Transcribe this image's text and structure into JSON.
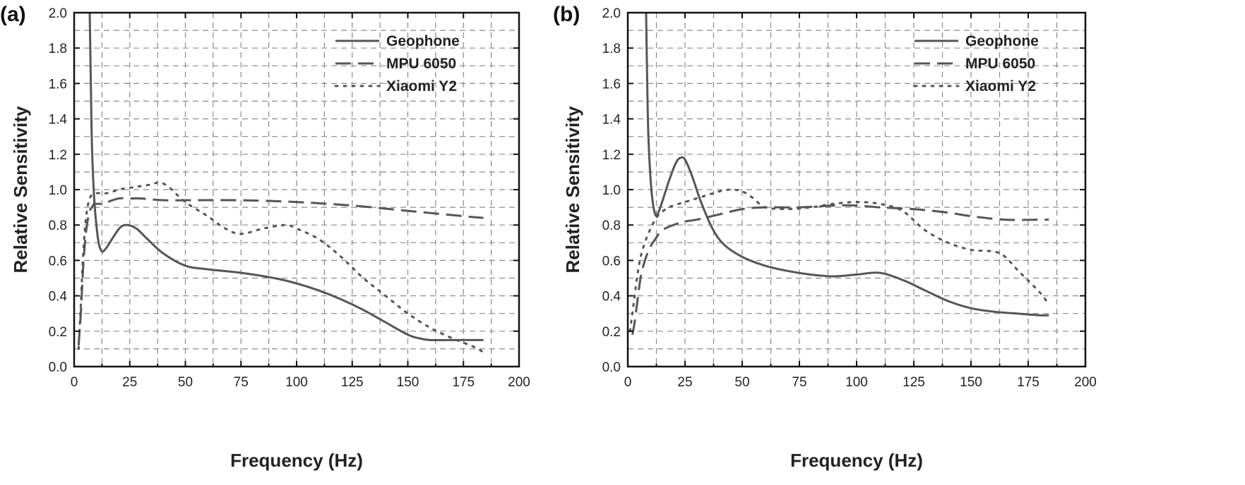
{
  "chart_data": [
    {
      "panel": "(a)",
      "type": "line",
      "xlabel": "Frequency (Hz)",
      "ylabel": "Relative Sensitivity",
      "xlim": [
        0,
        200
      ],
      "ylim": [
        0,
        2.0
      ],
      "xticks": [
        0,
        25,
        50,
        75,
        100,
        125,
        150,
        175,
        200
      ],
      "yticks": [
        "0.0",
        "0.2",
        "0.4",
        "0.6",
        "0.8",
        "1.0",
        "1.2",
        "1.4",
        "1.6",
        "1.8",
        "2.0"
      ],
      "grid": true,
      "legend": "top-right",
      "series": [
        {
          "name": "Geophone",
          "style": "solid",
          "x": [
            7,
            7.5,
            8,
            9,
            10,
            11,
            12,
            13,
            15,
            18,
            21,
            24,
            28,
            33,
            40,
            50,
            60,
            75,
            90,
            100,
            110,
            120,
            130,
            140,
            150,
            155,
            160,
            170,
            180,
            184
          ],
          "y": [
            2.0,
            1.6,
            1.25,
            0.95,
            0.8,
            0.7,
            0.66,
            0.65,
            0.68,
            0.74,
            0.79,
            0.8,
            0.78,
            0.72,
            0.64,
            0.57,
            0.55,
            0.53,
            0.5,
            0.47,
            0.43,
            0.38,
            0.32,
            0.25,
            0.18,
            0.16,
            0.15,
            0.15,
            0.15,
            0.15
          ]
        },
        {
          "name": "MPU 6050",
          "style": "dashed",
          "x": [
            2,
            3,
            4,
            5,
            6,
            7,
            8,
            9,
            10,
            12,
            15,
            20,
            25,
            30,
            40,
            50,
            75,
            100,
            125,
            150,
            175,
            184
          ],
          "y": [
            0.12,
            0.3,
            0.55,
            0.72,
            0.82,
            0.88,
            0.9,
            0.92,
            0.92,
            0.92,
            0.93,
            0.95,
            0.95,
            0.95,
            0.94,
            0.94,
            0.94,
            0.93,
            0.91,
            0.88,
            0.85,
            0.84
          ]
        },
        {
          "name": "Xiaomi Y2",
          "style": "dotted",
          "x": [
            2,
            3,
            4,
            5,
            6,
            7,
            8,
            10,
            15,
            20,
            25,
            30,
            35,
            38,
            42,
            50,
            60,
            68,
            75,
            85,
            95,
            100,
            110,
            120,
            130,
            140,
            150,
            160,
            170,
            180,
            184
          ],
          "y": [
            0.1,
            0.35,
            0.62,
            0.8,
            0.9,
            0.95,
            0.97,
            0.98,
            0.98,
            1.0,
            1.01,
            1.02,
            1.03,
            1.04,
            1.02,
            0.93,
            0.85,
            0.78,
            0.75,
            0.78,
            0.8,
            0.78,
            0.72,
            0.62,
            0.5,
            0.4,
            0.3,
            0.22,
            0.16,
            0.11,
            0.08
          ]
        }
      ]
    },
    {
      "panel": "(b)",
      "type": "line",
      "xlabel": "Frequency (Hz)",
      "ylabel": "Relative Sensitivity",
      "xlim": [
        0,
        200
      ],
      "ylim": [
        0,
        2.0
      ],
      "xticks": [
        0,
        25,
        50,
        75,
        100,
        125,
        150,
        175,
        200
      ],
      "yticks": [
        "0.0",
        "0.2",
        "0.4",
        "0.6",
        "0.8",
        "1.0",
        "1.2",
        "1.4",
        "1.6",
        "1.8",
        "2.0"
      ],
      "grid": true,
      "legend": "top-right",
      "series": [
        {
          "name": "Geophone",
          "style": "solid",
          "x": [
            8,
            8.5,
            9,
            10,
            11,
            12,
            13,
            15,
            18,
            21,
            23,
            25,
            28,
            32,
            37,
            42,
            50,
            60,
            70,
            80,
            90,
            100,
            110,
            120,
            130,
            140,
            150,
            160,
            170,
            180,
            184
          ],
          "y": [
            2.0,
            1.6,
            1.3,
            1.05,
            0.92,
            0.86,
            0.86,
            0.93,
            1.05,
            1.15,
            1.18,
            1.17,
            1.08,
            0.93,
            0.78,
            0.69,
            0.62,
            0.57,
            0.54,
            0.52,
            0.51,
            0.52,
            0.53,
            0.49,
            0.43,
            0.37,
            0.33,
            0.31,
            0.3,
            0.29,
            0.29
          ]
        },
        {
          "name": "MPU 6050",
          "style": "dashed",
          "x": [
            2,
            3,
            4,
            5,
            6,
            8,
            10,
            12,
            15,
            20,
            25,
            30,
            40,
            50,
            60,
            75,
            90,
            100,
            110,
            125,
            140,
            150,
            165,
            180,
            184
          ],
          "y": [
            0.18,
            0.25,
            0.35,
            0.45,
            0.53,
            0.62,
            0.68,
            0.72,
            0.77,
            0.8,
            0.82,
            0.83,
            0.86,
            0.89,
            0.9,
            0.9,
            0.91,
            0.91,
            0.9,
            0.89,
            0.87,
            0.85,
            0.83,
            0.83,
            0.83
          ]
        },
        {
          "name": "Xiaomi Y2",
          "style": "dotted",
          "x": [
            1,
            2,
            3,
            4,
            5,
            6,
            8,
            10,
            13,
            18,
            25,
            30,
            35,
            40,
            45,
            50,
            55,
            60,
            70,
            80,
            90,
            100,
            110,
            120,
            130,
            140,
            150,
            160,
            165,
            170,
            180,
            184
          ],
          "y": [
            0.2,
            0.3,
            0.4,
            0.5,
            0.58,
            0.64,
            0.72,
            0.78,
            0.85,
            0.9,
            0.93,
            0.95,
            0.97,
            0.99,
            1.0,
            0.99,
            0.95,
            0.9,
            0.89,
            0.9,
            0.92,
            0.93,
            0.92,
            0.88,
            0.77,
            0.7,
            0.66,
            0.65,
            0.62,
            0.55,
            0.42,
            0.35
          ]
        }
      ]
    }
  ]
}
